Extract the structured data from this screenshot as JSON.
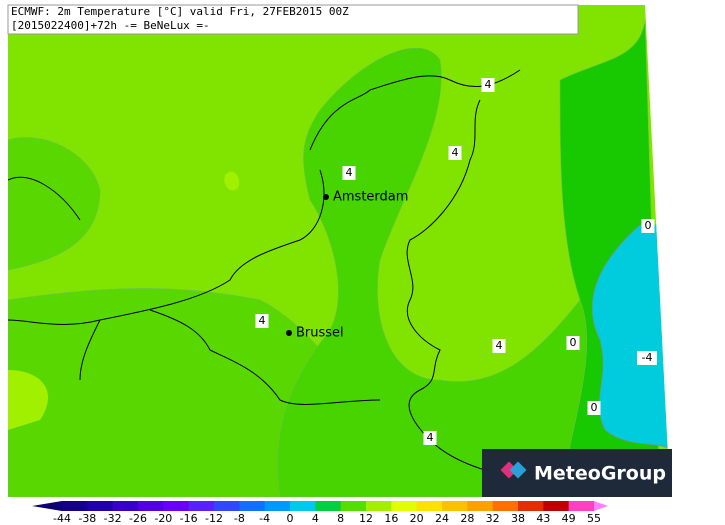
{
  "header": {
    "line1": "ECMWF: 2m Temperature [°C] valid Fri, 27FEB2015 00Z",
    "line2": "[2015022400]+72h -= BeNeLux =-"
  },
  "map": {
    "cities": [
      "Amsterdam",
      "Brussel"
    ],
    "contour_labels": [
      "4",
      "4",
      "4",
      "4",
      "4",
      "4",
      "0",
      "0",
      "0",
      "-4"
    ]
  },
  "logo": {
    "text": "MeteoGroup"
  },
  "colorbar": {
    "ticks": [
      -44,
      -38,
      -32,
      -26,
      -20,
      -16,
      -12,
      -8,
      -4,
      0,
      4,
      8,
      12,
      16,
      20,
      24,
      28,
      32,
      38,
      43,
      49,
      55
    ],
    "colors": [
      "#0a0070",
      "#12008c",
      "#2000a8",
      "#3a00c8",
      "#5400e0",
      "#6a00f8",
      "#5a20ff",
      "#3048ff",
      "#1070ff",
      "#0098ff",
      "#00c8f0",
      "#00d040",
      "#50e000",
      "#a0f000",
      "#e0ff00",
      "#ffe000",
      "#ffc000",
      "#ffa000",
      "#ff7000",
      "#e03000",
      "#c00000",
      "#ff40c0",
      "#ff80ff"
    ]
  }
}
